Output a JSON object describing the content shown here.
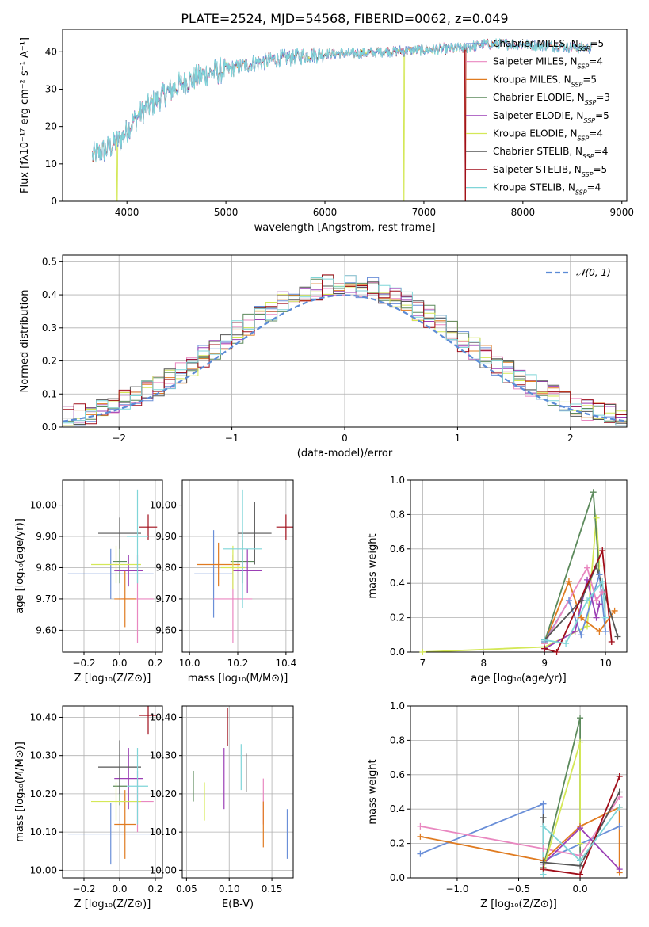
{
  "figure_title": "PLATE=2524, MJD=54568, FIBERID=0062, z=0.049",
  "colors": {
    "Chabrier MILES": "#6a8fd8",
    "Salpeter MILES": "#e987c0",
    "Kroupa MILES": "#e07b20",
    "Chabrier ELODIE": "#5c8a5c",
    "Salpeter ELODIE": "#9b3fb5",
    "Kroupa ELODIE": "#d4e857",
    "Chabrier STELIB": "#555555",
    "Salpeter STELIB": "#a00e1a",
    "Kroupa STELIB": "#7fd5d8",
    "normal": "#5b8bd6"
  },
  "chart_data": [
    {
      "type": "line",
      "xlabel": "wavelength [Angstrom, rest frame]",
      "ylabel": "Flux [fλ10⁻¹⁷ erg cm⁻² s⁻¹ A⁻¹]",
      "xlim": [
        3350,
        9050
      ],
      "ylim": [
        0,
        46
      ],
      "xticks": [
        4000,
        5000,
        6000,
        7000,
        8000,
        9000
      ],
      "yticks": [
        0,
        10,
        20,
        30,
        40
      ],
      "grid": false,
      "legend": "upper-right",
      "legend_entries": [
        {
          "label": "Chabrier MILES, N",
          "sub": "SSP",
          "tail": "=5",
          "model": "Chabrier MILES"
        },
        {
          "label": "Salpeter MILES, N",
          "sub": "SSP",
          "tail": "=4",
          "model": "Salpeter MILES"
        },
        {
          "label": "Kroupa MILES, N",
          "sub": "SSP",
          "tail": "=5",
          "model": "Kroupa MILES"
        },
        {
          "label": "Chabrier ELODIE, N",
          "sub": "SSP",
          "tail": "=3",
          "model": "Chabrier ELODIE"
        },
        {
          "label": "Salpeter ELODIE, N",
          "sub": "SSP",
          "tail": "=5",
          "model": "Salpeter ELODIE"
        },
        {
          "label": "Kroupa ELODIE, N",
          "sub": "SSP",
          "tail": "=4",
          "model": "Kroupa ELODIE"
        },
        {
          "label": "Chabrier STELIB, N",
          "sub": "SSP",
          "tail": "=4",
          "model": "Chabrier STELIB"
        },
        {
          "label": "Salpeter STELIB, N",
          "sub": "SSP",
          "tail": "=5",
          "model": "Salpeter STELIB"
        },
        {
          "label": "Kroupa STELIB, N",
          "sub": "SSP",
          "tail": "=4",
          "model": "Kroupa STELIB"
        }
      ],
      "continuum": [
        [
          3650,
          12
        ],
        [
          3800,
          14
        ],
        [
          3950,
          17
        ],
        [
          4050,
          21
        ],
        [
          4200,
          25
        ],
        [
          4400,
          29
        ],
        [
          4600,
          32
        ],
        [
          4800,
          34
        ],
        [
          5000,
          35
        ],
        [
          5200,
          36.5
        ],
        [
          5500,
          38
        ],
        [
          5800,
          39
        ],
        [
          6000,
          39.5
        ],
        [
          6300,
          39.5
        ],
        [
          6600,
          40
        ],
        [
          7000,
          40.5
        ],
        [
          7400,
          41
        ],
        [
          7600,
          42
        ],
        [
          8000,
          42
        ],
        [
          8300,
          41.5
        ],
        [
          8700,
          41
        ]
      ],
      "drops": [
        {
          "model": "Kroupa ELODIE",
          "x": 3900
        },
        {
          "model": "Kroupa ELODIE",
          "x": 6800
        },
        {
          "model": "Kroupa MILES",
          "x": 7420
        },
        {
          "model": "Salpeter STELIB",
          "x": 7420
        }
      ]
    },
    {
      "type": "histogram",
      "xlabel": "(data-model)/error",
      "ylabel": "Normed distribution",
      "xlim": [
        -2.5,
        2.5
      ],
      "ylim": [
        0,
        0.52
      ],
      "xticks": [
        -2,
        -1,
        0,
        1,
        2
      ],
      "yticks": [
        0.0,
        0.1,
        0.2,
        0.3,
        0.4,
        0.5
      ],
      "grid": true,
      "legend_label": "𝒩(0, 1)",
      "bin_width": 0.1,
      "bin_start": -2.5
    },
    {
      "type": "errorbar",
      "xlabel": "Z [log₁₀(Z/Z⊙)]",
      "ylabel": "age  [log₁₀(age/yr)]",
      "xlim": [
        -0.32,
        0.24
      ],
      "ylim": [
        9.53,
        10.08
      ],
      "xticks": [
        -0.2,
        0.0,
        0.2
      ],
      "yticks": [
        9.6,
        9.7,
        9.8,
        9.9,
        10.0
      ],
      "points": [
        {
          "model": "Chabrier MILES",
          "x": -0.05,
          "xe": 0.24,
          "y": 9.78,
          "ye": 0.08
        },
        {
          "model": "Salpeter MILES",
          "x": 0.1,
          "xe": 0.09,
          "y": 9.7,
          "ye": 0.14
        },
        {
          "model": "Kroupa MILES",
          "x": 0.03,
          "xe": 0.06,
          "y": 9.7,
          "ye": 0.09
        },
        {
          "model": "Chabrier ELODIE",
          "x": 0.0,
          "xe": 0.04,
          "y": 9.82,
          "ye": 0.07
        },
        {
          "model": "Salpeter ELODIE",
          "x": 0.05,
          "xe": 0.08,
          "y": 9.79,
          "ye": 0.05
        },
        {
          "model": "Kroupa ELODIE",
          "x": -0.02,
          "xe": 0.14,
          "y": 9.81,
          "ye": 0.06
        },
        {
          "model": "Chabrier STELIB",
          "x": 0.0,
          "xe": 0.12,
          "y": 9.91,
          "ye": 0.05
        },
        {
          "model": "Salpeter STELIB",
          "x": 0.16,
          "xe": 0.05,
          "y": 9.93,
          "ye": 0.04
        },
        {
          "model": "Kroupa STELIB",
          "x": 0.1,
          "xe": 0.06,
          "y": 9.9,
          "ye": 0.15
        }
      ]
    },
    {
      "type": "errorbar",
      "xlabel": "mass [log₁₀(M/M⊙)]",
      "ylabel": "",
      "xlim": [
        9.97,
        10.43
      ],
      "ylim": [
        9.53,
        10.08
      ],
      "xticks": [
        10.0,
        10.2,
        10.4
      ],
      "yticks": [
        9.6,
        9.7,
        9.8,
        9.9,
        10.0
      ],
      "points": [
        {
          "model": "Chabrier MILES",
          "x": 10.1,
          "xe": 0.08,
          "y": 9.78,
          "ye": 0.14
        },
        {
          "model": "Salpeter MILES",
          "x": 10.18,
          "xe": 0.08,
          "y": 9.7,
          "ye": 0.14
        },
        {
          "model": "Kroupa MILES",
          "x": 10.12,
          "xe": 0.09,
          "y": 9.81,
          "ye": 0.07
        },
        {
          "model": "Chabrier ELODIE",
          "x": 10.22,
          "xe": 0.05,
          "y": 9.82,
          "ye": 0.07
        },
        {
          "model": "Salpeter ELODIE",
          "x": 10.24,
          "xe": 0.06,
          "y": 9.79,
          "ye": 0.07
        },
        {
          "model": "Kroupa ELODIE",
          "x": 10.18,
          "xe": 0.05,
          "y": 9.8,
          "ye": 0.07
        },
        {
          "model": "Chabrier STELIB",
          "x": 10.27,
          "xe": 0.07,
          "y": 9.91,
          "ye": 0.1
        },
        {
          "model": "Salpeter STELIB",
          "x": 10.4,
          "xe": 0.04,
          "y": 9.93,
          "ye": 0.04
        },
        {
          "model": "Kroupa STELIB",
          "x": 10.22,
          "xe": 0.08,
          "y": 9.86,
          "ye": 0.19
        }
      ]
    },
    {
      "type": "line",
      "xlabel": "age  [log₁₀(age/yr)]",
      "ylabel": "mass weight",
      "xlim": [
        6.8,
        10.35
      ],
      "ylim": [
        0,
        1.0
      ],
      "xticks": [
        7,
        8,
        9,
        10
      ],
      "yticks": [
        0.0,
        0.2,
        0.4,
        0.6,
        0.8,
        1.0
      ],
      "grid": true,
      "series": [
        {
          "model": "Kroupa ELODIE",
          "points": [
            [
              7.0,
              0.0
            ],
            [
              9.0,
              0.03
            ],
            [
              9.7,
              0.15
            ],
            [
              9.85,
              0.78
            ],
            [
              9.9,
              0.5
            ]
          ]
        },
        {
          "model": "Chabrier ELODIE",
          "points": [
            [
              9.0,
              0.06
            ],
            [
              9.8,
              0.93
            ],
            [
              9.9,
              0.45
            ]
          ]
        },
        {
          "model": "Kroupa MILES",
          "points": [
            [
              9.0,
              0.05
            ],
            [
              9.4,
              0.41
            ],
            [
              9.6,
              0.2
            ],
            [
              9.9,
              0.12
            ],
            [
              10.15,
              0.24
            ]
          ]
        },
        {
          "model": "Chabrier MILES",
          "points": [
            [
              9.0,
              0.06
            ],
            [
              9.4,
              0.3
            ],
            [
              9.6,
              0.1
            ],
            [
              9.9,
              0.45
            ],
            [
              10.0,
              0.12
            ]
          ]
        },
        {
          "model": "Salpeter MILES",
          "points": [
            [
              9.0,
              0.05
            ],
            [
              9.7,
              0.49
            ],
            [
              9.85,
              0.3
            ],
            [
              9.95,
              0.35
            ]
          ]
        },
        {
          "model": "Salpeter ELODIE",
          "points": [
            [
              9.0,
              0.02
            ],
            [
              9.5,
              0.12
            ],
            [
              9.7,
              0.42
            ],
            [
              9.85,
              0.2
            ],
            [
              9.9,
              0.28
            ]
          ]
        },
        {
          "model": "Chabrier STELIB",
          "points": [
            [
              9.0,
              0.07
            ],
            [
              9.6,
              0.3
            ],
            [
              9.85,
              0.5
            ],
            [
              10.2,
              0.09
            ]
          ]
        },
        {
          "model": "Salpeter STELIB",
          "points": [
            [
              9.0,
              0.02
            ],
            [
              9.2,
              0.0
            ],
            [
              9.95,
              0.59
            ],
            [
              10.1,
              0.06
            ]
          ]
        },
        {
          "model": "Kroupa STELIB",
          "points": [
            [
              9.0,
              0.07
            ],
            [
              9.35,
              0.05
            ],
            [
              9.7,
              0.3
            ],
            [
              9.95,
              0.41
            ],
            [
              10.0,
              0.2
            ]
          ]
        }
      ]
    },
    {
      "type": "errorbar",
      "xlabel": "Z [log₁₀(Z/Z⊙)]",
      "ylabel": "mass [log₁₀(M/M⊙)]",
      "xlim": [
        -0.32,
        0.24
      ],
      "ylim": [
        9.98,
        10.43
      ],
      "xticks": [
        -0.2,
        0.0,
        0.2
      ],
      "yticks": [
        10.0,
        10.1,
        10.2,
        10.3,
        10.4
      ],
      "points": [
        {
          "model": "Chabrier MILES",
          "x": -0.05,
          "xe": 0.24,
          "y": 10.095,
          "ye": 0.08
        },
        {
          "model": "Salpeter MILES",
          "x": 0.1,
          "xe": 0.09,
          "y": 10.18,
          "ye": 0.08
        },
        {
          "model": "Kroupa MILES",
          "x": 0.03,
          "xe": 0.06,
          "y": 10.12,
          "ye": 0.09
        },
        {
          "model": "Chabrier ELODIE",
          "x": 0.0,
          "xe": 0.04,
          "y": 10.22,
          "ye": 0.05
        },
        {
          "model": "Salpeter ELODIE",
          "x": 0.05,
          "xe": 0.08,
          "y": 10.24,
          "ye": 0.08
        },
        {
          "model": "Kroupa ELODIE",
          "x": -0.02,
          "xe": 0.14,
          "y": 10.18,
          "ye": 0.05
        },
        {
          "model": "Chabrier STELIB",
          "x": 0.0,
          "xe": 0.12,
          "y": 10.27,
          "ye": 0.07
        },
        {
          "model": "Salpeter STELIB",
          "x": 0.16,
          "xe": 0.05,
          "y": 10.405,
          "ye": 0.05
        },
        {
          "model": "Kroupa STELIB",
          "x": 0.1,
          "xe": 0.06,
          "y": 10.22,
          "ye": 0.1
        }
      ]
    },
    {
      "type": "errorbar",
      "xlabel": "E(B-V)",
      "ylabel": "",
      "xlim": [
        0.045,
        0.175
      ],
      "ylim": [
        9.98,
        10.43
      ],
      "xticks": [
        0.05,
        0.1,
        0.15
      ],
      "yticks": [
        10.0,
        10.1,
        10.2,
        10.3,
        10.4
      ],
      "points": [
        {
          "model": "Chabrier MILES",
          "x": 0.168,
          "xe": 0,
          "y": 10.095,
          "ye": 0.065
        },
        {
          "model": "Salpeter MILES",
          "x": 0.14,
          "xe": 0,
          "y": 10.18,
          "ye": 0.06
        },
        {
          "model": "Kroupa MILES",
          "x": 0.14,
          "xe": 0,
          "y": 10.12,
          "ye": 0.06
        },
        {
          "model": "Chabrier ELODIE",
          "x": 0.058,
          "xe": 0,
          "y": 10.22,
          "ye": 0.04
        },
        {
          "model": "Salpeter ELODIE",
          "x": 0.094,
          "xe": 0,
          "y": 10.24,
          "ye": 0.08
        },
        {
          "model": "Kroupa ELODIE",
          "x": 0.071,
          "xe": 0,
          "y": 10.18,
          "ye": 0.05
        },
        {
          "model": "Chabrier STELIB",
          "x": 0.12,
          "xe": 0,
          "y": 10.255,
          "ye": 0.05
        },
        {
          "model": "Salpeter STELIB",
          "x": 0.098,
          "xe": 0,
          "y": 10.375,
          "ye": 0.05
        },
        {
          "model": "Kroupa STELIB",
          "x": 0.114,
          "xe": 0,
          "y": 10.27,
          "ye": 0.06
        }
      ]
    },
    {
      "type": "line",
      "xlabel": "Z [log₁₀(Z/Z⊙)]",
      "ylabel": "mass weight",
      "xlim": [
        -1.38,
        0.38
      ],
      "ylim": [
        0,
        1.0
      ],
      "xticks": [
        -1.0,
        -0.5,
        0.0
      ],
      "yticks": [
        0.0,
        0.2,
        0.4,
        0.6,
        0.8,
        1.0
      ],
      "grid": true,
      "series": [
        {
          "model": "Chabrier MILES",
          "points": [
            [
              -1.3,
              0.14
            ],
            [
              -0.3,
              0.43
            ],
            [
              -0.3,
              0.1
            ],
            [
              0.32,
              0.3
            ]
          ]
        },
        {
          "model": "Salpeter MILES",
          "points": [
            [
              -1.3,
              0.3
            ],
            [
              -0.3,
              0.17
            ],
            [
              0.0,
              0.13
            ],
            [
              0.32,
              0.47
            ]
          ]
        },
        {
          "model": "Kroupa MILES",
          "points": [
            [
              -1.3,
              0.24
            ],
            [
              -0.3,
              0.1
            ],
            [
              0.0,
              0.3
            ],
            [
              0.32,
              0.41
            ],
            [
              0.32,
              0.03
            ]
          ]
        },
        {
          "model": "Chabrier ELODIE",
          "points": [
            [
              -0.3,
              0.06
            ],
            [
              0.0,
              0.93
            ],
            [
              0.0,
              0.1
            ]
          ]
        },
        {
          "model": "Salpeter ELODIE",
          "points": [
            [
              -0.3,
              0.08
            ],
            [
              0.0,
              0.29
            ],
            [
              0.32,
              0.05
            ]
          ]
        },
        {
          "model": "Kroupa ELODIE",
          "points": [
            [
              -0.3,
              0.05
            ],
            [
              0.0,
              0.79
            ],
            [
              0.0,
              0.2
            ]
          ]
        },
        {
          "model": "Chabrier STELIB",
          "points": [
            [
              -0.3,
              0.35
            ],
            [
              -0.3,
              0.09
            ],
            [
              0.0,
              0.07
            ],
            [
              0.32,
              0.5
            ]
          ]
        },
        {
          "model": "Salpeter STELIB",
          "points": [
            [
              -0.3,
              0.05
            ],
            [
              0.0,
              0.02
            ],
            [
              0.32,
              0.59
            ]
          ]
        },
        {
          "model": "Kroupa STELIB",
          "points": [
            [
              -0.3,
              0.02
            ],
            [
              -0.3,
              0.3
            ],
            [
              0.0,
              0.1
            ],
            [
              0.32,
              0.41
            ]
          ]
        }
      ]
    }
  ]
}
